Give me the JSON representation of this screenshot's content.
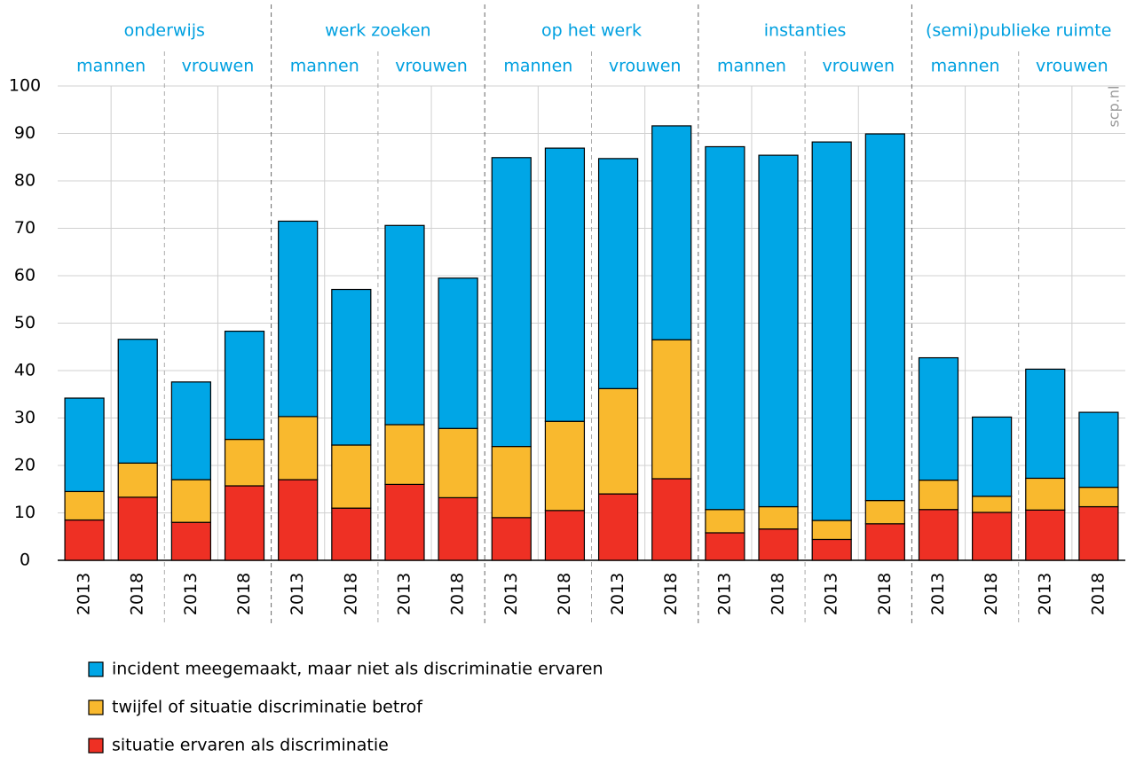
{
  "chart_data": {
    "type": "stacked_bar",
    "groups": [
      {
        "label": "onderwijs",
        "subgroups": [
          "mannen",
          "vrouwen"
        ]
      },
      {
        "label": "werk zoeken",
        "subgroups": [
          "mannen",
          "vrouwen"
        ]
      },
      {
        "label": "op het werk",
        "subgroups": [
          "mannen",
          "vrouwen"
        ]
      },
      {
        "label": "instanties",
        "subgroups": [
          "mannen",
          "vrouwen"
        ]
      },
      {
        "label": "(semi)publieke ruimte",
        "subgroups": [
          "mannen",
          "vrouwen"
        ]
      }
    ],
    "categories": [
      "2013",
      "2018",
      "2013",
      "2018",
      "2013",
      "2018",
      "2013",
      "2018",
      "2013",
      "2018",
      "2013",
      "2018",
      "2013",
      "2018",
      "2013",
      "2018",
      "2013",
      "2018",
      "2013",
      "2018"
    ],
    "series": [
      {
        "name": "incident meegemaakt, maar niet als discriminatie ervaren",
        "color": "#00a6e6",
        "values": [
          19.7,
          26.1,
          20.6,
          22.8,
          41.2,
          32.8,
          42,
          31.7,
          60.9,
          57.6,
          48.5,
          45.1,
          76.5,
          74.1,
          79.8,
          77.3,
          25.8,
          16.7,
          23,
          15.8
        ]
      },
      {
        "name": "twijfel of situatie discriminatie betrof",
        "color": "#f9b92e",
        "values": [
          6,
          7.2,
          9,
          9.8,
          13.3,
          13.3,
          12.6,
          14.6,
          15,
          18.8,
          22.2,
          29.3,
          4.9,
          4.7,
          4,
          4.9,
          6.2,
          3.4,
          6.7,
          4.1
        ]
      },
      {
        "name": "situatie ervaren als discriminatie",
        "color": "#ee3024",
        "values": [
          8.5,
          13.3,
          8,
          15.7,
          17,
          11,
          16,
          13.2,
          9,
          10.5,
          14,
          17.2,
          5.8,
          6.6,
          4.4,
          7.7,
          10.7,
          10.1,
          10.6,
          11.3
        ]
      }
    ],
    "ylim": [
      0,
      100
    ],
    "yticks": [
      0,
      10,
      20,
      30,
      40,
      50,
      60,
      70,
      80,
      90,
      100
    ],
    "grid": true,
    "watermark": "scp.nl"
  }
}
